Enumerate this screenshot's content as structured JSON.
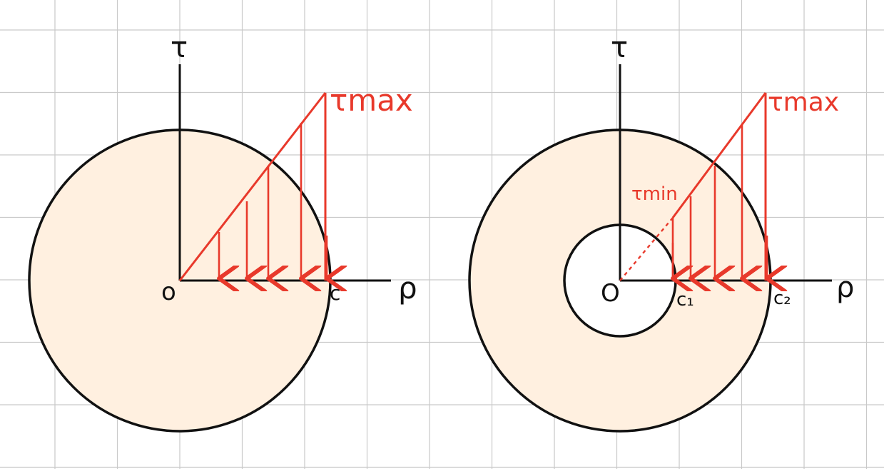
{
  "colors": {
    "grid": "#c9c9c9",
    "fill": "#fff0e0",
    "stroke": "#111111",
    "accent": "#e8392b"
  },
  "left_diagram": {
    "tau_axis_label": "τ",
    "rho_axis_label": "ρ",
    "origin_label": "o",
    "radius_label": "c",
    "max_label": "τmax"
  },
  "right_diagram": {
    "tau_axis_label": "τ",
    "rho_axis_label": "ρ",
    "origin_label": "O",
    "inner_radius_label": "c₁",
    "outer_radius_label": "c₂",
    "max_label": "τmax",
    "min_label": "τmin"
  }
}
